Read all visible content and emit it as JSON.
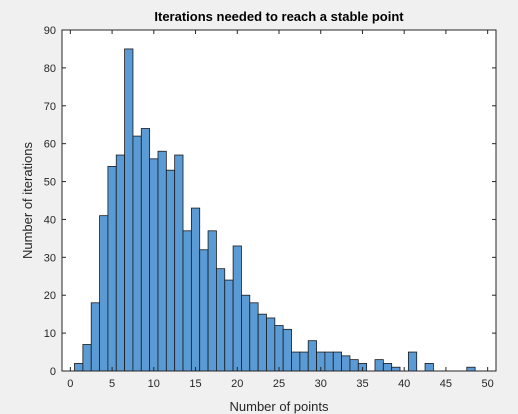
{
  "chart_data": {
    "type": "bar",
    "title": "Iterations needed to reach a stable point",
    "xlabel": "Number of points",
    "ylabel": "Number of iterations",
    "xlim": [
      -1,
      51
    ],
    "ylim": [
      0,
      90
    ],
    "xticks": [
      0,
      5,
      10,
      15,
      20,
      25,
      30,
      35,
      40,
      45,
      50
    ],
    "yticks": [
      0,
      10,
      20,
      30,
      40,
      50,
      60,
      70,
      80,
      90
    ],
    "bin_width": 1,
    "bar_color": "#5b9bd5",
    "edge_color": "#1a1a1a",
    "grid": false,
    "legend": "none",
    "x": [
      1,
      2,
      3,
      4,
      5,
      6,
      7,
      8,
      9,
      10,
      11,
      12,
      13,
      14,
      15,
      16,
      17,
      18,
      19,
      20,
      21,
      22,
      23,
      24,
      25,
      26,
      27,
      28,
      29,
      30,
      31,
      32,
      33,
      34,
      35,
      36,
      37,
      38,
      39,
      40,
      41,
      42,
      43,
      44,
      45,
      46,
      47,
      48,
      49
    ],
    "values": [
      2,
      7,
      18,
      41,
      54,
      57,
      85,
      62,
      64,
      56,
      58,
      53,
      57,
      37,
      43,
      32,
      37,
      27,
      24,
      33,
      20,
      18,
      15,
      14,
      12,
      11,
      5,
      5,
      8,
      5,
      5,
      5,
      4,
      3,
      2,
      0,
      3,
      2,
      1,
      0,
      5,
      0,
      2,
      0,
      0,
      0,
      0,
      1,
      0
    ]
  }
}
